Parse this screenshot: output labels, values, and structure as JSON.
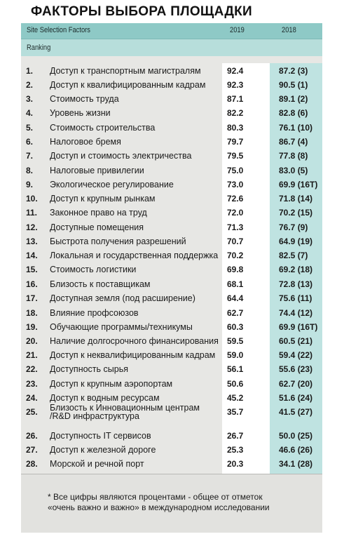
{
  "title": "ФАКТОРЫ ВЫБОРА ПЛОЩАДКИ",
  "header": {
    "label": "Site Selection Factors",
    "col_2019": "2019",
    "col_2018": "2018",
    "subheader": "Ranking"
  },
  "rows": [
    {
      "rank": "1.",
      "name": "Доступ к транспортным магистралям",
      "v2019": "92.4",
      "v2018": "87.2 (3)"
    },
    {
      "rank": "2.",
      "name": "Доступ к квалифицированным кадрам",
      "v2019": "92.3",
      "v2018": "90.5 (1)"
    },
    {
      "rank": "3.",
      "name": "Стоимость труда",
      "v2019": "87.1",
      "v2018": "89.1 (2)"
    },
    {
      "rank": "4.",
      "name": "Уровень жизни",
      "v2019": "82.2",
      "v2018": "82.8 (6)"
    },
    {
      "rank": "5.",
      "name": "Стоимость строительства",
      "v2019": "80.3",
      "v2018": "76.1 (10)"
    },
    {
      "rank": "6.",
      "name": "Налоговое бремя",
      "v2019": "79.7",
      "v2018": "86.7 (4)"
    },
    {
      "rank": "7.",
      "name": "Доступ и стоимость электричества",
      "v2019": "79.5",
      "v2018": "77.8 (8)"
    },
    {
      "rank": "8.",
      "name": "Налоговые привилегии",
      "v2019": "75.0",
      "v2018": "83.0 (5)"
    },
    {
      "rank": "9.",
      "name": "Экологическое регулирование",
      "v2019": "73.0",
      "v2018": "69.9 (16T)"
    },
    {
      "rank": "10.",
      "name": "Доступ к крупным рынкам",
      "v2019": "72.6",
      "v2018": "71.8 (14)"
    },
    {
      "rank": "11.",
      "name": "Законное право на труд",
      "v2019": "72.0",
      "v2018": "70.2 (15)"
    },
    {
      "rank": "12.",
      "name": "Доступные помещения",
      "v2019": "71.3",
      "v2018": "76.7 (9)"
    },
    {
      "rank": "13.",
      "name": "Быстрота получения разрешений",
      "v2019": "70.7",
      "v2018": "64.9 (19)"
    },
    {
      "rank": "14.",
      "name": "Локальная и государственная поддержка",
      "v2019": "70.2",
      "v2018": "82.5 (7)"
    },
    {
      "rank": "15.",
      "name": "Стоимость логистики",
      "v2019": "69.8",
      "v2018": "69.2 (18)"
    },
    {
      "rank": "16.",
      "name": "Близость к поставщикам",
      "v2019": "68.1",
      "v2018": "72.8 (13)"
    },
    {
      "rank": "17.",
      "name": "Доступная земля (под расширение)",
      "v2019": "64.4",
      "v2018": "75.6 (11)"
    },
    {
      "rank": "18.",
      "name": "Влияние профсоюзов",
      "v2019": "62.7",
      "v2018": "74.4 (12)"
    },
    {
      "rank": "19.",
      "name": "Обучающие программы/техникумы",
      "v2019": "60.3",
      "v2018": "69.9 (16T)"
    },
    {
      "rank": "20.",
      "name": "Наличие долгосрочного финансирования",
      "v2019": "59.5",
      "v2018": "60.5 (21)"
    },
    {
      "rank": "21.",
      "name": "Доступ к неквалифицированным кадрам",
      "v2019": "59.0",
      "v2018": "59.4 (22)"
    },
    {
      "rank": "22.",
      "name": "Доступность сырья",
      "v2019": "56.1",
      "v2018": "55.6 (23)"
    },
    {
      "rank": "23.",
      "name": "Доступ к крупным аэропортам",
      "v2019": "50.6",
      "v2018": "62.7 (20)"
    },
    {
      "rank": "24.",
      "name": "Доступ к водным ресурсам",
      "v2019": "45.2",
      "v2018": "51.6 (24)"
    },
    {
      "rank": "25.",
      "name": "Близость к Инновационным центрам",
      "v2019": "35.7",
      "v2018": "41.5 (27)"
    },
    {
      "rank": "",
      "name": "/R&D инфраструктура",
      "v2019": "",
      "v2018": ""
    },
    {
      "rank": "26.",
      "name": "Доступность IT сервисов",
      "v2019": "26.7",
      "v2018": "50.0 (25)"
    },
    {
      "rank": "27.",
      "name": "Доступ к железной дороге",
      "v2019": "25.3",
      "v2018": "46.6 (26)"
    },
    {
      "rank": "28.",
      "name": "Морской и речной порт",
      "v2019": "20.3",
      "v2018": "34.1 (28)"
    }
  ],
  "footnote": "* Все цифры являются процентами  - общее от отметок «очень важно и важно» в международном исследовании"
}
